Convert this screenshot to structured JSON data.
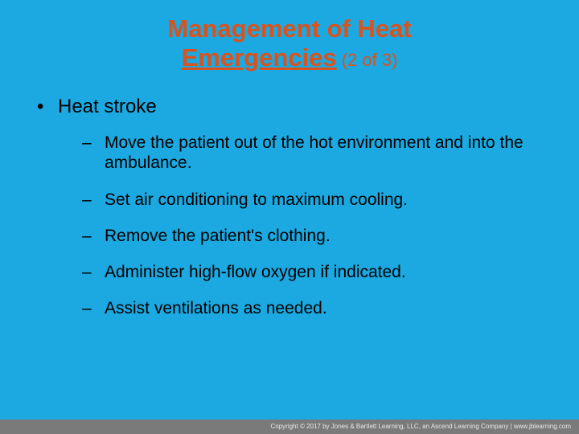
{
  "colors": {
    "background": "#1ca8e0",
    "title": "#d9531e",
    "body_text": "#000000",
    "footer_bg": "#7a7a7a",
    "footer_text": "#e8e8e8"
  },
  "typography": {
    "title_fontsize": 31,
    "title_suffix_fontsize": 22,
    "level1_fontsize": 24,
    "level2_fontsize": 21,
    "footer_fontsize": 8,
    "font_family": "Arial"
  },
  "title": {
    "line1": "Management of Heat",
    "line2_underlined": "Emergencies",
    "suffix": " (2 of 3)"
  },
  "content": {
    "level1": "Heat stroke",
    "level2": [
      "Move the patient out of the hot environment and into the ambulance.",
      "Set air conditioning to maximum cooling.",
      "Remove the patient's clothing.",
      "Administer high-flow oxygen if indicated.",
      "Assist ventilations as needed."
    ]
  },
  "footer": {
    "text": "Copyright © 2017 by Jones & Bartlett Learning, LLC, an Ascend Learning Company  |  www.jblearning.com"
  }
}
